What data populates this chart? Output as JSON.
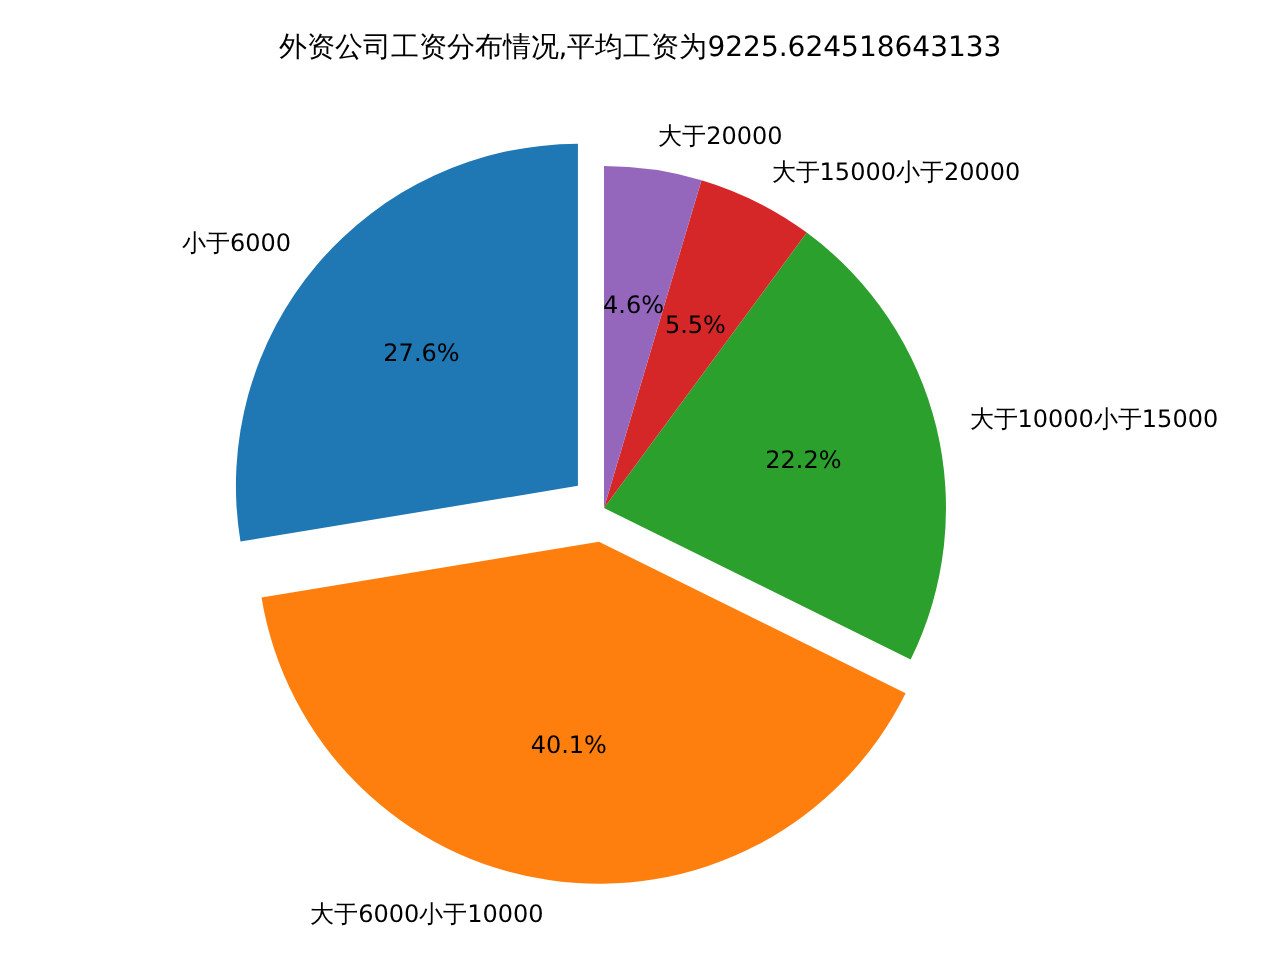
{
  "chart_data": {
    "type": "pie",
    "title": "外资公司工资分布情况,平均工资为9225.624518643133",
    "categories": [
      "小于6000",
      "大于6000小于10000",
      "大于10000小于15000",
      "大于15000小于20000",
      "大于20000"
    ],
    "values": [
      27.6,
      40.1,
      22.2,
      5.5,
      4.6
    ],
    "colors": [
      "#1f77b4",
      "#ff7f0e",
      "#2ca02c",
      "#d62728",
      "#9467bd"
    ],
    "value_labels": [
      "27.6%",
      "40.1%",
      "22.2%",
      "5.5%",
      "4.6%"
    ]
  }
}
